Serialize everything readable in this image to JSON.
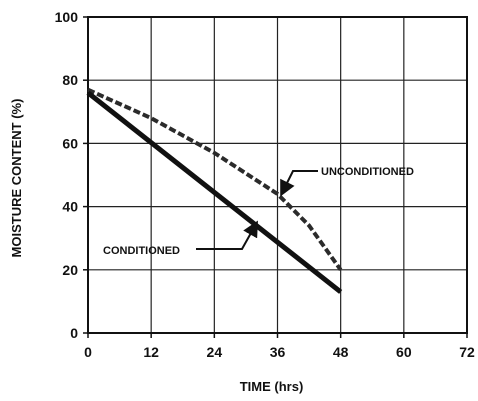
{
  "chart_data": {
    "type": "line",
    "title": "",
    "xlabel": "TIME (hrs)",
    "ylabel": "MOISTURE CONTENT (%)",
    "xlim": [
      0,
      72
    ],
    "ylim": [
      0,
      100
    ],
    "x_ticks": [
      0,
      12,
      24,
      36,
      48,
      60,
      72
    ],
    "y_ticks": [
      0,
      20,
      40,
      60,
      80,
      100
    ],
    "grid": true,
    "series": [
      {
        "name": "UNCONDITIONED",
        "style": "dashed",
        "color": "#2b2b2b",
        "x": [
          0,
          12,
          24,
          36,
          42,
          48
        ],
        "y": [
          77,
          68,
          57,
          44,
          34,
          20
        ]
      },
      {
        "name": "CONDITIONED",
        "style": "solid",
        "color": "#111111",
        "x": [
          0,
          48
        ],
        "y": [
          76,
          13
        ]
      }
    ],
    "annotations": [
      {
        "text": "UNCONDITIONED",
        "series": "UNCONDITIONED",
        "points_to": {
          "x": 36,
          "y": 43
        }
      },
      {
        "text": "CONDITIONED",
        "series": "CONDITIONED",
        "points_to": {
          "x": 31,
          "y": 34
        }
      }
    ]
  }
}
